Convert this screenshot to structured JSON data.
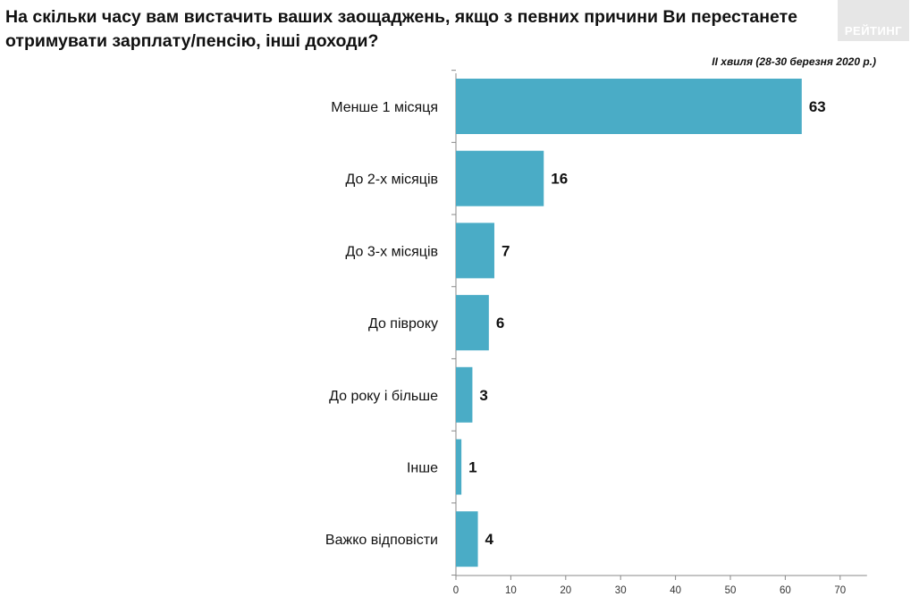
{
  "title": "На скільки часу вам вистачить ваших заощаджень, якщо з певних причини Ви перестанете отримувати зарплату/пенсію, інші доходи?",
  "subtitle": "ІІ хвиля (28-30 березня 2020 р.)",
  "logo": {
    "text": "РЕЙТИНГ"
  },
  "colors": {
    "bar": "#4aacc6",
    "axis": "#888888",
    "background": "#ffffff"
  },
  "chart_data": {
    "type": "bar",
    "orientation": "horizontal",
    "title": "На скільки часу вам вистачить ваших заощаджень, якщо з певних причини Ви перестанете отримувати зарплату/пенсію, інші доходи?",
    "categories": [
      "Менше 1 місяця",
      "До 2-х місяців",
      "До 3-х місяців",
      "До півроку",
      "До року і більше",
      "Інше",
      "Важко відповісти"
    ],
    "values": [
      63,
      16,
      7,
      6,
      3,
      1,
      4
    ],
    "xlim": [
      0,
      70
    ],
    "xticks": [
      0,
      10,
      20,
      30,
      40,
      50,
      60,
      70
    ],
    "xlabel": "",
    "ylabel": "",
    "grid": false,
    "legend": "none"
  }
}
